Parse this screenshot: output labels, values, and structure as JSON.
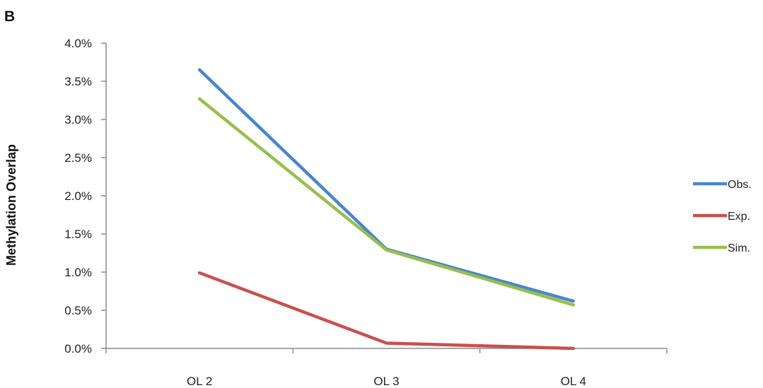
{
  "panel_label": "B",
  "chart_data": {
    "type": "line",
    "categories": [
      "OL 2",
      "OL 3",
      "OL 4"
    ],
    "ylabel": "Methylation Overlap",
    "xlabel": "",
    "ylim": [
      0,
      4.0
    ],
    "yticks": [
      "0.0%",
      "0.5%",
      "1.0%",
      "1.5%",
      "2.0%",
      "2.5%",
      "3.0%",
      "3.5%",
      "4.0%"
    ],
    "y_unit": "%",
    "grid": false,
    "legend_position": "right",
    "series": [
      {
        "name": "Obs.",
        "color": "#4a86c8",
        "values": [
          3.65,
          1.3,
          0.62
        ]
      },
      {
        "name": "Exp.",
        "color": "#c9504d",
        "values": [
          0.99,
          0.07,
          0.0
        ]
      },
      {
        "name": "Sim.",
        "color": "#98bf4e",
        "values": [
          3.27,
          1.29,
          0.57
        ]
      }
    ]
  }
}
